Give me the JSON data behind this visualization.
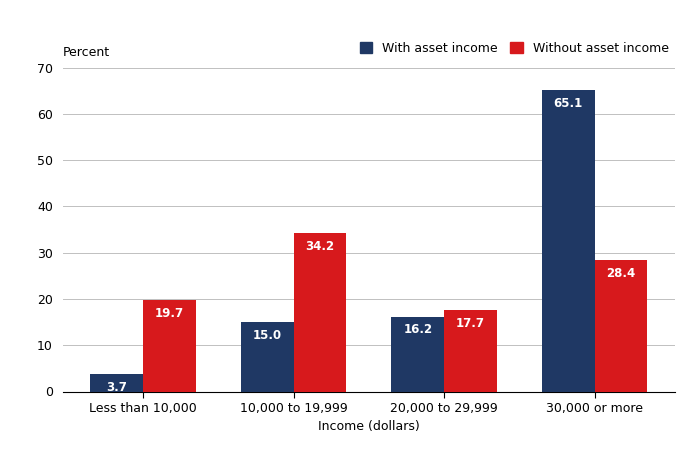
{
  "categories": [
    "Less than 10,000",
    "10,000 to 19,999",
    "20,000 to 29,999",
    "30,000 or more"
  ],
  "with_asset_income": [
    3.7,
    15.0,
    16.2,
    65.1
  ],
  "without_asset_income": [
    19.7,
    34.2,
    17.7,
    28.4
  ],
  "bar_color_with": "#1f3864",
  "bar_color_without": "#d7191c",
  "ylabel": "Percent",
  "xlabel": "Income (dollars)",
  "ylim": [
    0,
    70
  ],
  "yticks": [
    0,
    10,
    20,
    30,
    40,
    50,
    60,
    70
  ],
  "legend_with": "With asset income",
  "legend_without": "Without asset income",
  "bar_width": 0.35,
  "label_color_with": "#ffffff",
  "label_color_without": "#ffffff",
  "background_color": "#ffffff",
  "grid_color": "#c0c0c0",
  "label_fontsize": 9,
  "tick_fontsize": 9,
  "value_fontsize": 8.5,
  "legend_fontsize": 9
}
